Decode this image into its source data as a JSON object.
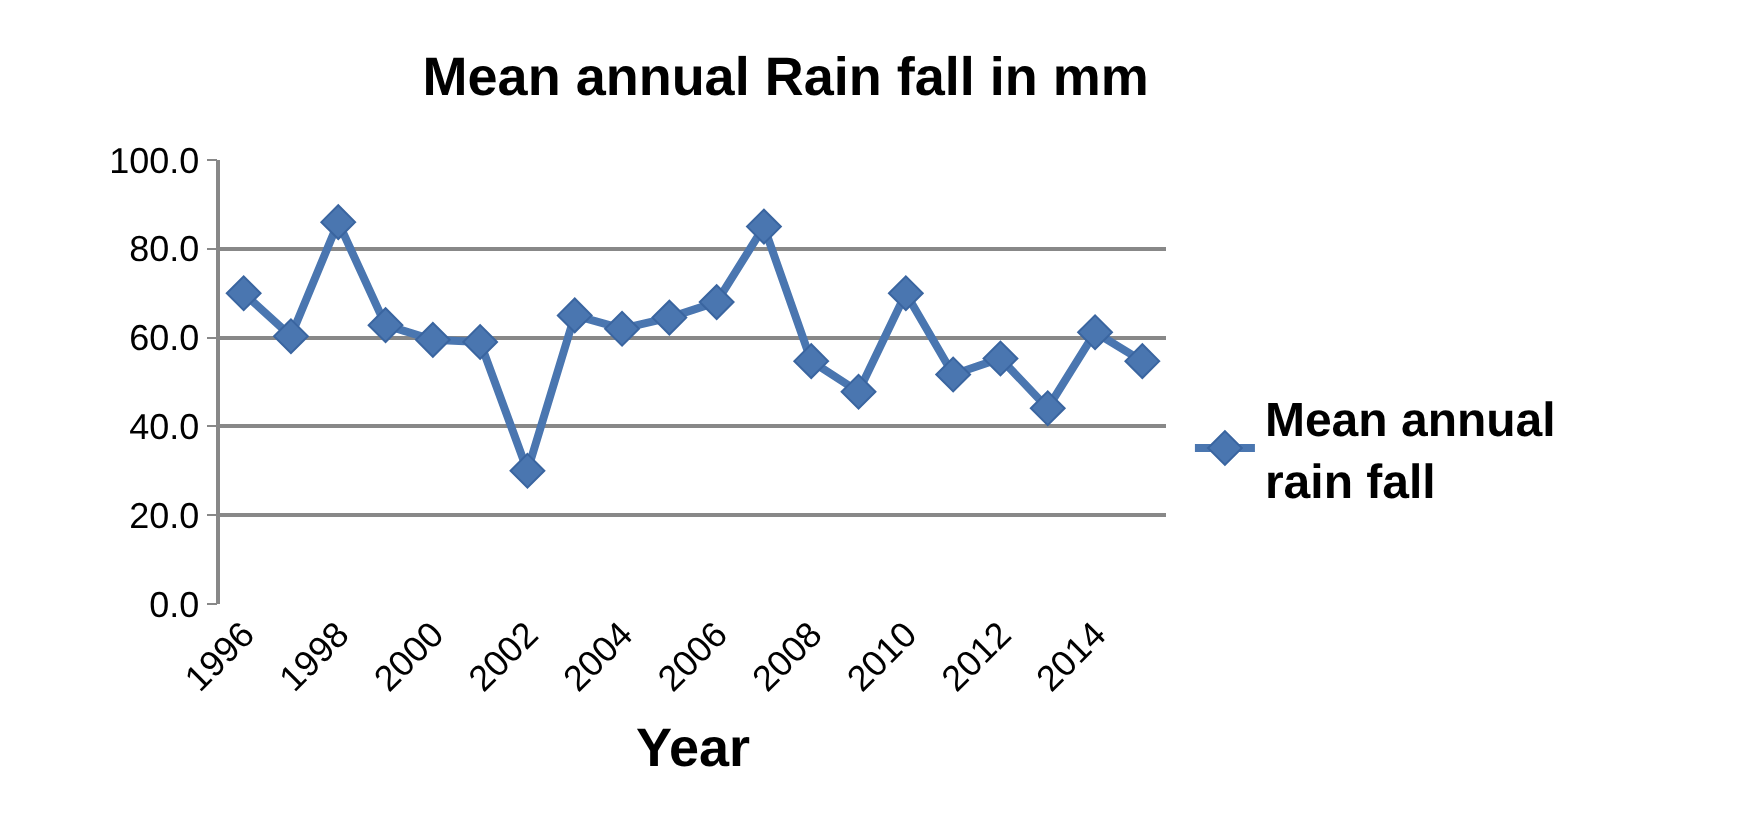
{
  "chart_data": {
    "type": "line",
    "title": "Mean annual Rain fall in mm",
    "xlabel": "Year",
    "categories": [
      "1996",
      null,
      "1998",
      null,
      "2000",
      null,
      "2002",
      null,
      "2004",
      null,
      "2006",
      null,
      "2008",
      null,
      "2010",
      null,
      "2012",
      null,
      "2014",
      null
    ],
    "series": [
      {
        "name": "Mean annual rain fall",
        "color": "#4a76b0",
        "values": [
          70,
          60.3,
          86,
          62.8,
          59.5,
          59,
          30,
          65,
          62,
          64.5,
          68,
          85,
          54.7,
          47.8,
          70,
          51.7,
          55.3,
          44.1,
          61.2,
          54.7
        ]
      }
    ],
    "ylim": [
      0,
      100
    ],
    "yticks": [
      {
        "value": 0,
        "label": "0.0"
      },
      {
        "value": 20,
        "label": "20.0"
      },
      {
        "value": 40,
        "label": "40.0"
      },
      {
        "value": 60,
        "label": "60.0"
      },
      {
        "value": 80,
        "label": "80.0"
      },
      {
        "value": 100,
        "label": "100.0"
      }
    ],
    "grid": "y",
    "legend": "right",
    "marker": "diamond",
    "line_style": "solid"
  }
}
